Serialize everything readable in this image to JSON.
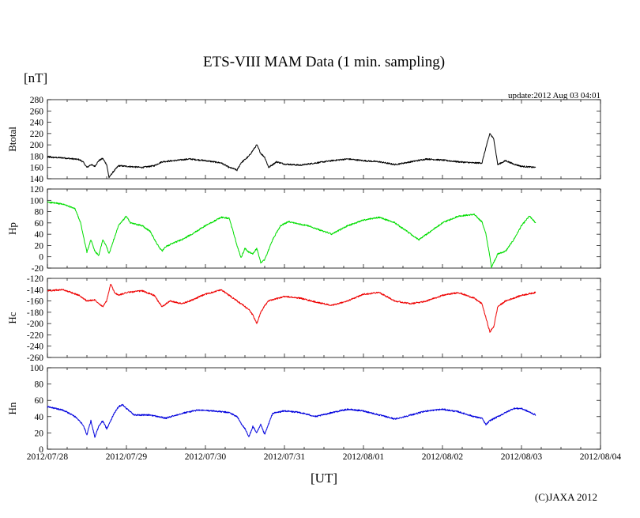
{
  "chart_data": {
    "type": "line",
    "title": "ETS-VIII MAM Data (1 min. sampling)",
    "unit_label": "[nT]",
    "xlabel": "[UT]",
    "update_text": "update:2012 Aug 03 04:01",
    "copyright": "(C)JAXA 2012",
    "x_ticks": [
      "2012/07/28",
      "2012/07/29",
      "2012/07/30",
      "2012/07/31",
      "2012/08/01",
      "2012/08/02",
      "2012/08/03",
      "2012/08/04"
    ],
    "x_range_days": [
      0,
      7
    ],
    "panels": [
      {
        "name": "Btotal",
        "color": "#000000",
        "ylim": [
          140,
          280
        ],
        "yticks": [
          280,
          260,
          240,
          220,
          200,
          180,
          160,
          140
        ],
        "points": [
          [
            0,
            178
          ],
          [
            0.2,
            177
          ],
          [
            0.4,
            174
          ],
          [
            0.45,
            170
          ],
          [
            0.5,
            160
          ],
          [
            0.55,
            165
          ],
          [
            0.6,
            162
          ],
          [
            0.65,
            172
          ],
          [
            0.7,
            176
          ],
          [
            0.75,
            165
          ],
          [
            0.78,
            142
          ],
          [
            0.82,
            150
          ],
          [
            0.9,
            163
          ],
          [
            1.0,
            162
          ],
          [
            1.2,
            160
          ],
          [
            1.35,
            163
          ],
          [
            1.45,
            170
          ],
          [
            1.6,
            172
          ],
          [
            1.8,
            175
          ],
          [
            2.0,
            172
          ],
          [
            2.2,
            168
          ],
          [
            2.3,
            160
          ],
          [
            2.35,
            158
          ],
          [
            2.4,
            155
          ],
          [
            2.45,
            168
          ],
          [
            2.55,
            180
          ],
          [
            2.6,
            190
          ],
          [
            2.65,
            200
          ],
          [
            2.7,
            185
          ],
          [
            2.75,
            178
          ],
          [
            2.8,
            160
          ],
          [
            2.9,
            170
          ],
          [
            3.0,
            166
          ],
          [
            3.2,
            164
          ],
          [
            3.4,
            168
          ],
          [
            3.6,
            172
          ],
          [
            3.8,
            175
          ],
          [
            4.0,
            172
          ],
          [
            4.2,
            170
          ],
          [
            4.4,
            165
          ],
          [
            4.6,
            170
          ],
          [
            4.8,
            175
          ],
          [
            5.0,
            173
          ],
          [
            5.2,
            170
          ],
          [
            5.4,
            168
          ],
          [
            5.5,
            168
          ],
          [
            5.55,
            195
          ],
          [
            5.6,
            220
          ],
          [
            5.65,
            210
          ],
          [
            5.7,
            165
          ],
          [
            5.8,
            172
          ],
          [
            5.9,
            166
          ],
          [
            6.0,
            162
          ],
          [
            6.18,
            160
          ]
        ]
      },
      {
        "name": "Hp",
        "color": "#00dd00",
        "ylim": [
          -20,
          120
        ],
        "yticks": [
          120,
          100,
          80,
          60,
          40,
          20,
          0,
          -20
        ],
        "points": [
          [
            0,
            97
          ],
          [
            0.2,
            93
          ],
          [
            0.35,
            85
          ],
          [
            0.42,
            60
          ],
          [
            0.5,
            8
          ],
          [
            0.55,
            30
          ],
          [
            0.6,
            10
          ],
          [
            0.65,
            2
          ],
          [
            0.7,
            30
          ],
          [
            0.75,
            18
          ],
          [
            0.78,
            5
          ],
          [
            0.85,
            35
          ],
          [
            0.9,
            55
          ],
          [
            1.0,
            72
          ],
          [
            1.05,
            60
          ],
          [
            1.2,
            55
          ],
          [
            1.3,
            45
          ],
          [
            1.4,
            20
          ],
          [
            1.45,
            10
          ],
          [
            1.5,
            18
          ],
          [
            1.6,
            25
          ],
          [
            1.7,
            30
          ],
          [
            1.8,
            38
          ],
          [
            2.0,
            55
          ],
          [
            2.2,
            70
          ],
          [
            2.3,
            68
          ],
          [
            2.35,
            45
          ],
          [
            2.4,
            20
          ],
          [
            2.45,
            -2
          ],
          [
            2.5,
            15
          ],
          [
            2.55,
            8
          ],
          [
            2.6,
            5
          ],
          [
            2.65,
            15
          ],
          [
            2.7,
            -10
          ],
          [
            2.75,
            -5
          ],
          [
            2.85,
            30
          ],
          [
            2.95,
            55
          ],
          [
            3.05,
            62
          ],
          [
            3.3,
            55
          ],
          [
            3.5,
            45
          ],
          [
            3.6,
            40
          ],
          [
            3.8,
            55
          ],
          [
            4.0,
            65
          ],
          [
            4.2,
            70
          ],
          [
            4.4,
            60
          ],
          [
            4.6,
            40
          ],
          [
            4.7,
            30
          ],
          [
            4.8,
            40
          ],
          [
            5.0,
            60
          ],
          [
            5.2,
            72
          ],
          [
            5.4,
            75
          ],
          [
            5.5,
            62
          ],
          [
            5.55,
            40
          ],
          [
            5.6,
            0
          ],
          [
            5.62,
            -18
          ],
          [
            5.7,
            5
          ],
          [
            5.8,
            10
          ],
          [
            5.9,
            30
          ],
          [
            6.0,
            55
          ],
          [
            6.1,
            72
          ],
          [
            6.18,
            60
          ]
        ]
      },
      {
        "name": "Hc",
        "color": "#ee0000",
        "ylim": [
          -260,
          -120
        ],
        "yticks": [
          -120,
          -140,
          -160,
          -180,
          -200,
          -220,
          -240,
          -260
        ],
        "points": [
          [
            0,
            -142
          ],
          [
            0.2,
            -140
          ],
          [
            0.4,
            -150
          ],
          [
            0.5,
            -160
          ],
          [
            0.6,
            -158
          ],
          [
            0.7,
            -170
          ],
          [
            0.75,
            -160
          ],
          [
            0.8,
            -130
          ],
          [
            0.85,
            -145
          ],
          [
            0.9,
            -150
          ],
          [
            1.0,
            -145
          ],
          [
            1.2,
            -142
          ],
          [
            1.35,
            -150
          ],
          [
            1.45,
            -170
          ],
          [
            1.55,
            -160
          ],
          [
            1.7,
            -165
          ],
          [
            1.8,
            -160
          ],
          [
            2.0,
            -148
          ],
          [
            2.2,
            -140
          ],
          [
            2.3,
            -150
          ],
          [
            2.45,
            -165
          ],
          [
            2.55,
            -175
          ],
          [
            2.6,
            -185
          ],
          [
            2.65,
            -200
          ],
          [
            2.7,
            -180
          ],
          [
            2.75,
            -168
          ],
          [
            2.8,
            -160
          ],
          [
            3.0,
            -152
          ],
          [
            3.2,
            -155
          ],
          [
            3.4,
            -162
          ],
          [
            3.6,
            -168
          ],
          [
            3.8,
            -160
          ],
          [
            4.0,
            -148
          ],
          [
            4.2,
            -145
          ],
          [
            4.4,
            -160
          ],
          [
            4.6,
            -165
          ],
          [
            4.8,
            -160
          ],
          [
            5.0,
            -150
          ],
          [
            5.2,
            -145
          ],
          [
            5.4,
            -155
          ],
          [
            5.5,
            -165
          ],
          [
            5.55,
            -190
          ],
          [
            5.6,
            -215
          ],
          [
            5.65,
            -205
          ],
          [
            5.7,
            -170
          ],
          [
            5.8,
            -160
          ],
          [
            5.9,
            -155
          ],
          [
            6.0,
            -150
          ],
          [
            6.18,
            -145
          ]
        ]
      },
      {
        "name": "Hn",
        "color": "#0000dd",
        "ylim": [
          0,
          100
        ],
        "yticks": [
          100,
          80,
          60,
          40,
          20,
          0
        ],
        "points": [
          [
            0,
            52
          ],
          [
            0.2,
            48
          ],
          [
            0.35,
            40
          ],
          [
            0.45,
            30
          ],
          [
            0.5,
            18
          ],
          [
            0.55,
            35
          ],
          [
            0.6,
            15
          ],
          [
            0.65,
            28
          ],
          [
            0.7,
            35
          ],
          [
            0.75,
            25
          ],
          [
            0.85,
            45
          ],
          [
            0.9,
            52
          ],
          [
            0.95,
            55
          ],
          [
            1.0,
            50
          ],
          [
            1.1,
            42
          ],
          [
            1.3,
            42
          ],
          [
            1.5,
            38
          ],
          [
            1.7,
            44
          ],
          [
            1.9,
            48
          ],
          [
            2.1,
            47
          ],
          [
            2.3,
            45
          ],
          [
            2.4,
            40
          ],
          [
            2.45,
            32
          ],
          [
            2.5,
            25
          ],
          [
            2.55,
            15
          ],
          [
            2.6,
            28
          ],
          [
            2.65,
            20
          ],
          [
            2.7,
            30
          ],
          [
            2.75,
            18
          ],
          [
            2.85,
            44
          ],
          [
            3.0,
            47
          ],
          [
            3.2,
            45
          ],
          [
            3.4,
            40
          ],
          [
            3.6,
            45
          ],
          [
            3.8,
            49
          ],
          [
            4.0,
            47
          ],
          [
            4.2,
            42
          ],
          [
            4.4,
            37
          ],
          [
            4.6,
            42
          ],
          [
            4.8,
            47
          ],
          [
            5.0,
            49
          ],
          [
            5.2,
            46
          ],
          [
            5.4,
            40
          ],
          [
            5.5,
            38
          ],
          [
            5.55,
            30
          ],
          [
            5.6,
            35
          ],
          [
            5.7,
            40
          ],
          [
            5.8,
            45
          ],
          [
            5.9,
            50
          ],
          [
            6.0,
            50
          ],
          [
            6.18,
            42
          ]
        ]
      }
    ]
  }
}
